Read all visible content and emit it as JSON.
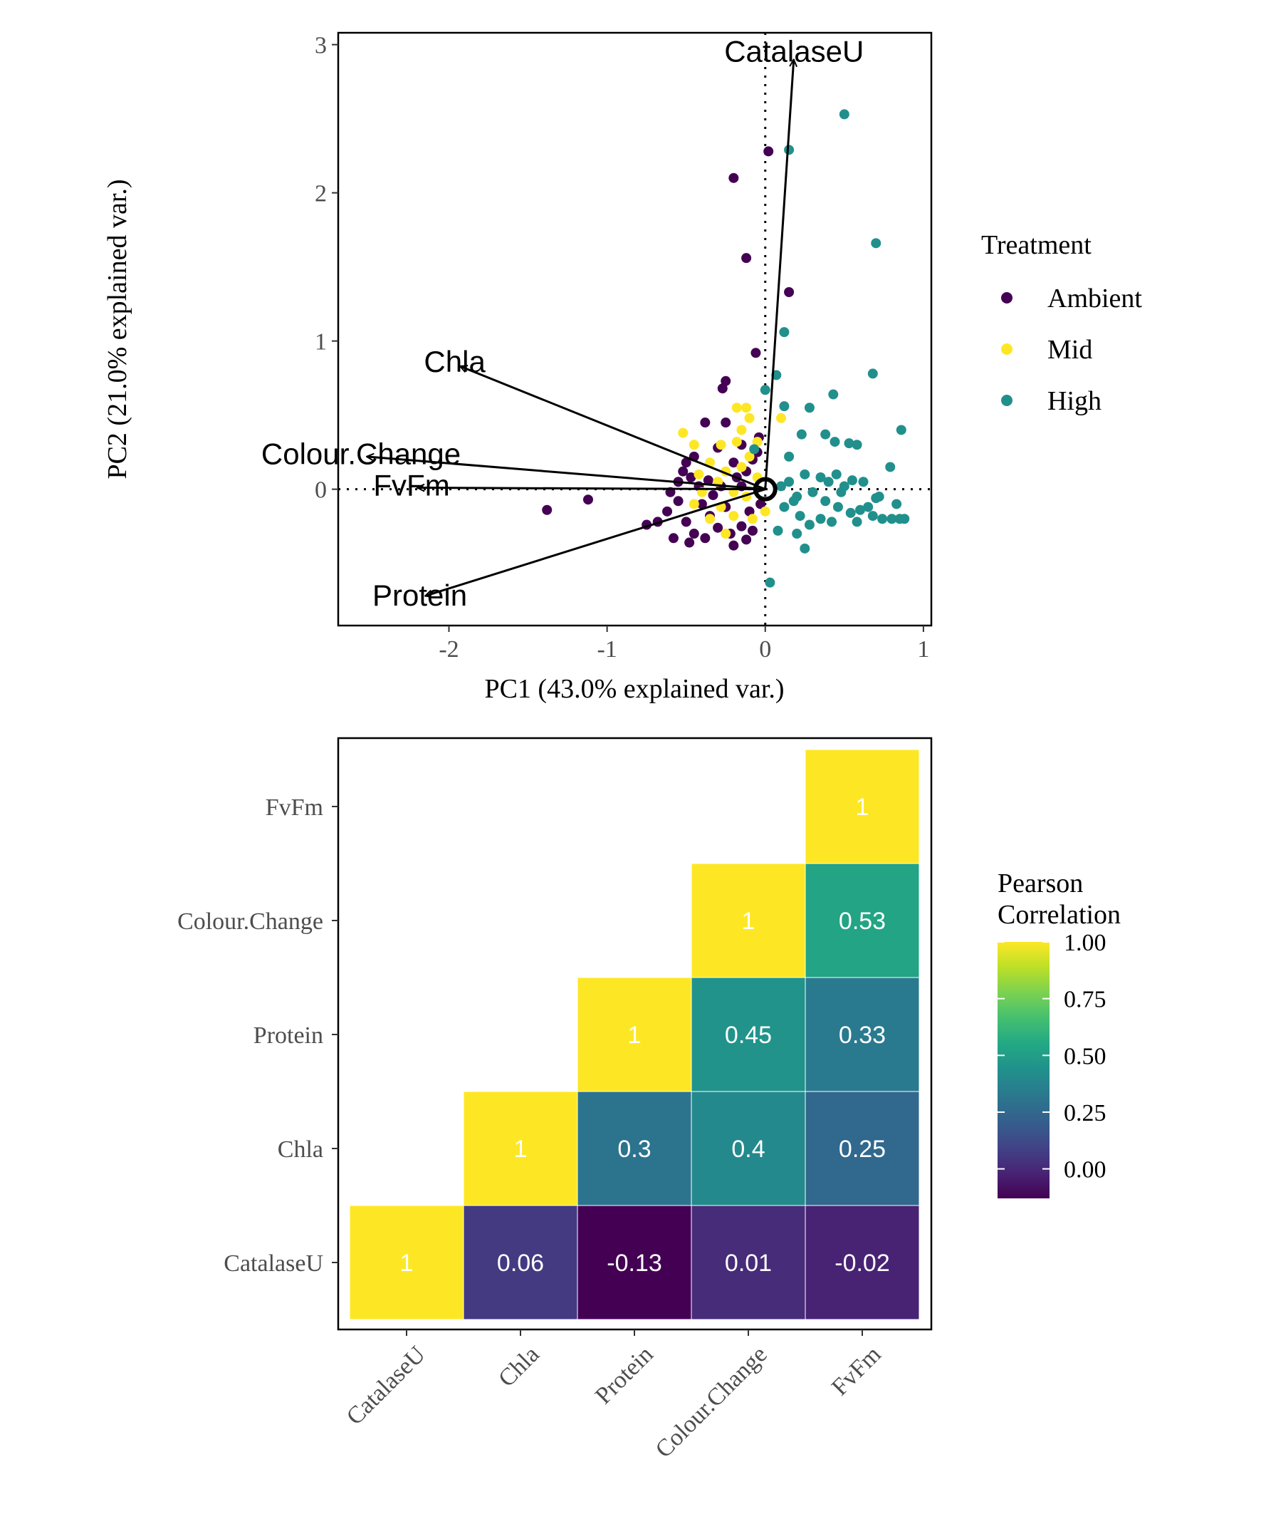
{
  "colors": {
    "Ambient": "#440154",
    "Mid": "#FDE725",
    "High": "#21908C"
  },
  "chart_data": [
    {
      "type": "scatter",
      "subtype": "pca-biplot",
      "title": "",
      "xlabel": "PC1 (43.0% explained var.)",
      "ylabel": "PC2 (21.0% explained var.)",
      "xlim": [
        -2.7,
        1.05
      ],
      "ylim": [
        -0.92,
        3.08
      ],
      "xticks": [
        -2,
        -1,
        0,
        1
      ],
      "yticks": [
        0,
        1,
        2,
        3
      ],
      "grid": false,
      "reference_lines": {
        "x": 0,
        "y": 0,
        "style": "dotted"
      },
      "legend": {
        "title": "Treatment",
        "position": "right",
        "entries": [
          "Ambient",
          "Mid",
          "High"
        ]
      },
      "loadings": [
        {
          "label": "CatalaseU",
          "x": 0.18,
          "y": 2.9
        },
        {
          "label": "Chla",
          "x": -1.93,
          "y": 0.83
        },
        {
          "label": "Colour.Change",
          "x": -2.52,
          "y": 0.22
        },
        {
          "label": "FvFm",
          "x": -2.2,
          "y": 0.01
        },
        {
          "label": "Protein",
          "x": -2.15,
          "y": -0.72
        }
      ],
      "series": [
        {
          "name": "Ambient",
          "points": [
            [
              0.02,
              2.28
            ],
            [
              -0.2,
              2.1
            ],
            [
              -0.12,
              1.56
            ],
            [
              0.15,
              1.33
            ],
            [
              -0.06,
              0.92
            ],
            [
              -0.25,
              0.73
            ],
            [
              -0.27,
              0.68
            ],
            [
              -0.38,
              0.45
            ],
            [
              -0.3,
              0.28
            ],
            [
              -0.15,
              0.3
            ],
            [
              -0.08,
              0.2
            ],
            [
              -0.45,
              0.22
            ],
            [
              -0.5,
              0.18
            ],
            [
              -0.52,
              0.12
            ],
            [
              -0.47,
              0.08
            ],
            [
              -0.42,
              0.02
            ],
            [
              -0.36,
              0.06
            ],
            [
              -0.2,
              0.18
            ],
            [
              -0.18,
              0.08
            ],
            [
              -0.12,
              0.12
            ],
            [
              -0.05,
              0.25
            ],
            [
              -0.28,
              0.02
            ],
            [
              -0.33,
              -0.04
            ],
            [
              -0.4,
              -0.1
            ],
            [
              -0.55,
              -0.08
            ],
            [
              -0.62,
              -0.15
            ],
            [
              -0.68,
              -0.22
            ],
            [
              -0.5,
              -0.22
            ],
            [
              -0.45,
              -0.3
            ],
            [
              -0.38,
              -0.33
            ],
            [
              -0.3,
              -0.26
            ],
            [
              -0.22,
              -0.3
            ],
            [
              -0.15,
              -0.25
            ],
            [
              -0.08,
              -0.28
            ],
            [
              -0.1,
              -0.15
            ],
            [
              -0.03,
              -0.1
            ],
            [
              -0.25,
              -0.12
            ],
            [
              -0.35,
              -0.18
            ],
            [
              -0.48,
              -0.36
            ],
            [
              -0.58,
              -0.33
            ],
            [
              -0.2,
              -0.38
            ],
            [
              -0.12,
              -0.34
            ],
            [
              -1.12,
              -0.07
            ],
            [
              -1.38,
              -0.14
            ],
            [
              -0.75,
              -0.24
            ],
            [
              -0.55,
              0.05
            ],
            [
              -0.6,
              -0.02
            ],
            [
              -0.25,
              0.45
            ],
            [
              -0.15,
              0.02
            ],
            [
              -0.04,
              0.35
            ]
          ]
        },
        {
          "name": "Mid",
          "points": [
            [
              -0.52,
              0.38
            ],
            [
              -0.45,
              0.3
            ],
            [
              -0.18,
              0.55
            ],
            [
              -0.1,
              0.48
            ],
            [
              0.1,
              0.48
            ],
            [
              -0.28,
              0.3
            ],
            [
              -0.18,
              0.32
            ],
            [
              -0.1,
              0.22
            ],
            [
              -0.35,
              0.18
            ],
            [
              -0.25,
              0.12
            ],
            [
              -0.15,
              0.15
            ],
            [
              -0.05,
              0.08
            ],
            [
              -0.3,
              0.05
            ],
            [
              -0.42,
              0.1
            ],
            [
              -0.2,
              -0.02
            ],
            [
              -0.12,
              -0.05
            ],
            [
              -0.28,
              -0.12
            ],
            [
              -0.35,
              -0.2
            ],
            [
              -0.45,
              -0.1
            ],
            [
              -0.2,
              -0.18
            ],
            [
              -0.08,
              -0.2
            ],
            [
              -0.25,
              -0.3
            ],
            [
              0.0,
              -0.15
            ],
            [
              -0.12,
              0.55
            ],
            [
              -0.05,
              0.32
            ],
            [
              -0.15,
              0.4
            ],
            [
              -0.4,
              -0.02
            ]
          ]
        },
        {
          "name": "High",
          "points": [
            [
              0.5,
              2.53
            ],
            [
              0.15,
              2.29
            ],
            [
              0.7,
              1.66
            ],
            [
              0.12,
              1.06
            ],
            [
              0.68,
              0.78
            ],
            [
              0.07,
              0.77
            ],
            [
              0.0,
              0.67
            ],
            [
              0.43,
              0.64
            ],
            [
              0.12,
              0.56
            ],
            [
              0.28,
              0.55
            ],
            [
              0.86,
              0.4
            ],
            [
              0.23,
              0.37
            ],
            [
              0.44,
              0.32
            ],
            [
              0.38,
              0.37
            ],
            [
              0.53,
              0.31
            ],
            [
              0.58,
              0.3
            ],
            [
              0.79,
              0.15
            ],
            [
              0.15,
              0.22
            ],
            [
              -0.07,
              0.27
            ],
            [
              0.25,
              0.1
            ],
            [
              0.35,
              0.08
            ],
            [
              0.4,
              0.05
            ],
            [
              0.45,
              0.1
            ],
            [
              0.5,
              0.02
            ],
            [
              0.55,
              0.06
            ],
            [
              0.62,
              0.05
            ],
            [
              0.3,
              -0.02
            ],
            [
              0.38,
              -0.08
            ],
            [
              0.46,
              -0.12
            ],
            [
              0.54,
              -0.16
            ],
            [
              0.6,
              -0.14
            ],
            [
              0.68,
              -0.18
            ],
            [
              0.74,
              -0.2
            ],
            [
              0.8,
              -0.2
            ],
            [
              0.85,
              -0.2
            ],
            [
              0.83,
              -0.1
            ],
            [
              0.7,
              -0.06
            ],
            [
              0.18,
              -0.08
            ],
            [
              0.22,
              -0.18
            ],
            [
              0.28,
              -0.24
            ],
            [
              0.35,
              -0.2
            ],
            [
              0.42,
              -0.22
            ],
            [
              0.12,
              -0.12
            ],
            [
              0.08,
              -0.28
            ],
            [
              0.2,
              -0.3
            ],
            [
              0.25,
              -0.4
            ],
            [
              0.03,
              -0.63
            ],
            [
              0.15,
              0.05
            ],
            [
              0.2,
              -0.05
            ],
            [
              0.1,
              0.02
            ],
            [
              0.48,
              -0.02
            ],
            [
              0.65,
              -0.12
            ],
            [
              0.72,
              -0.05
            ],
            [
              0.58,
              -0.22
            ],
            [
              0.88,
              -0.2
            ]
          ]
        }
      ]
    },
    {
      "type": "heatmap",
      "title": "",
      "variables": [
        "CatalaseU",
        "Chla",
        "Protein",
        "Colour.Change",
        "FvFm"
      ],
      "legend": {
        "title_lines": [
          "Pearson",
          "Correlation"
        ],
        "position": "right",
        "range": [
          -0.13,
          1.0
        ],
        "ticks": [
          "1.00",
          "0.75",
          "0.50",
          "0.25",
          "0.00"
        ]
      },
      "cells": [
        {
          "x": "CatalaseU",
          "y": "CatalaseU",
          "value": 1,
          "label": "1"
        },
        {
          "x": "Chla",
          "y": "CatalaseU",
          "value": 0.06,
          "label": "0.06"
        },
        {
          "x": "Protein",
          "y": "CatalaseU",
          "value": -0.13,
          "label": "-0.13"
        },
        {
          "x": "Colour.Change",
          "y": "CatalaseU",
          "value": 0.01,
          "label": "0.01"
        },
        {
          "x": "FvFm",
          "y": "CatalaseU",
          "value": -0.02,
          "label": "-0.02"
        },
        {
          "x": "Chla",
          "y": "Chla",
          "value": 1,
          "label": "1"
        },
        {
          "x": "Protein",
          "y": "Chla",
          "value": 0.3,
          "label": "0.3"
        },
        {
          "x": "Colour.Change",
          "y": "Chla",
          "value": 0.4,
          "label": "0.4"
        },
        {
          "x": "FvFm",
          "y": "Chla",
          "value": 0.25,
          "label": "0.25"
        },
        {
          "x": "Protein",
          "y": "Protein",
          "value": 1,
          "label": "1"
        },
        {
          "x": "Colour.Change",
          "y": "Protein",
          "value": 0.45,
          "label": "0.45"
        },
        {
          "x": "FvFm",
          "y": "Protein",
          "value": 0.33,
          "label": "0.33"
        },
        {
          "x": "Colour.Change",
          "y": "Colour.Change",
          "value": 1,
          "label": "1"
        },
        {
          "x": "FvFm",
          "y": "Colour.Change",
          "value": 0.53,
          "label": "0.53"
        },
        {
          "x": "FvFm",
          "y": "FvFm",
          "value": 1,
          "label": "1"
        }
      ]
    }
  ]
}
